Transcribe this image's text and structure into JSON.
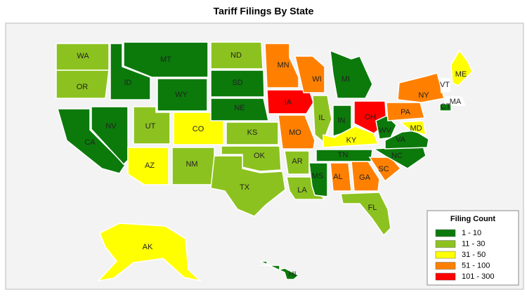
{
  "title": "Tariff Filings By State",
  "legend": {
    "title": "Filing Count",
    "items": [
      {
        "label": "1 - 10",
        "color": "#0b7a0b"
      },
      {
        "label": "11 - 30",
        "color": "#8cc21f"
      },
      {
        "label": "31 - 50",
        "color": "#ffff00"
      },
      {
        "label": "51 - 100",
        "color": "#ff8000"
      },
      {
        "label": "101 - 300",
        "color": "#ff0000"
      }
    ]
  },
  "states": [
    {
      "label": "WA",
      "color": "#8cc21f"
    },
    {
      "label": "OR",
      "color": "#8cc21f"
    },
    {
      "label": "CA",
      "color": "#0b7a0b"
    },
    {
      "label": "NV",
      "color": "#0b7a0b"
    },
    {
      "label": "ID",
      "color": "#0b7a0b"
    },
    {
      "label": "MT",
      "color": "#0b7a0b"
    },
    {
      "label": "WY",
      "color": "#0b7a0b"
    },
    {
      "label": "UT",
      "color": "#8cc21f"
    },
    {
      "label": "CO",
      "color": "#ffff00"
    },
    {
      "label": "AZ",
      "color": "#ffff00"
    },
    {
      "label": "NM",
      "color": "#8cc21f"
    },
    {
      "label": "ND",
      "color": "#8cc21f"
    },
    {
      "label": "SD",
      "color": "#0b7a0b"
    },
    {
      "label": "NE",
      "color": "#0b7a0b"
    },
    {
      "label": "KS",
      "color": "#8cc21f"
    },
    {
      "label": "OK",
      "color": "#8cc21f"
    },
    {
      "label": "TX",
      "color": "#8cc21f"
    },
    {
      "label": "MN",
      "color": "#ff8000"
    },
    {
      "label": "IA",
      "color": "#ff0000"
    },
    {
      "label": "MO",
      "color": "#ff8000"
    },
    {
      "label": "AR",
      "color": "#8cc21f"
    },
    {
      "label": "LA",
      "color": "#8cc21f"
    },
    {
      "label": "WI",
      "color": "#ff8000"
    },
    {
      "label": "IL",
      "color": "#8cc21f"
    },
    {
      "label": "MI",
      "color": "#0b7a0b"
    },
    {
      "label": "IN",
      "color": "#0b7a0b"
    },
    {
      "label": "OH",
      "color": "#ff0000"
    },
    {
      "label": "KY",
      "color": "#ffff00"
    },
    {
      "label": "TN",
      "color": "#0b7a0b"
    },
    {
      "label": "MS",
      "color": "#0b7a0b"
    },
    {
      "label": "AL",
      "color": "#ff8000"
    },
    {
      "label": "GA",
      "color": "#ff8000"
    },
    {
      "label": "SC",
      "color": "#ff8000"
    },
    {
      "label": "FL",
      "color": "#8cc21f"
    },
    {
      "label": "NC",
      "color": "#0b7a0b"
    },
    {
      "label": "VA",
      "color": "#0b7a0b"
    },
    {
      "label": "WV",
      "color": "#0b7a0b"
    },
    {
      "label": "MD",
      "color": "#ffff00"
    },
    {
      "label": "PA",
      "color": "#ff8000"
    },
    {
      "label": "NY",
      "color": "#ff8000"
    },
    {
      "label": "VT",
      "color": "#ffffff"
    },
    {
      "label": "ME",
      "color": "#ffff00"
    },
    {
      "label": "MA",
      "color": "#ffffff"
    },
    {
      "label": "CT",
      "color": "#0b7a0b"
    },
    {
      "label": "AK",
      "color": "#ffff00"
    },
    {
      "label": "HI",
      "color": "#0b7a0b"
    }
  ]
}
